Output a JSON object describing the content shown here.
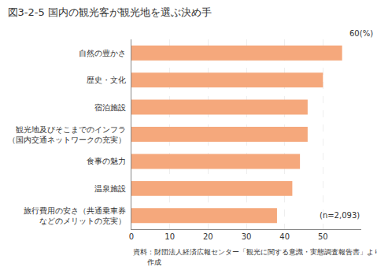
{
  "chart_data": {
    "type": "bar",
    "orientation": "horizontal",
    "title": "図3-2-5 国内の観光客が観光地を選ぶ決め手",
    "xlabel": "60(%)",
    "categories": [
      "旅行費用の安さ（共通乗車券\nなどのメリットの充実）",
      "温泉施設",
      "食事の魅力",
      "観光地及びそこまでのインフラ\n（国内交通ネットワークの充実）",
      "宿泊施設",
      "歴史・文化",
      "自然の豊かさ"
    ],
    "values": [
      38,
      42,
      44,
      46,
      46,
      50,
      55
    ],
    "color": "#F5A87C",
    "xlim": [
      0,
      60
    ],
    "xticks": [
      0,
      10,
      20,
      30,
      40,
      50
    ],
    "grid": true,
    "annotations": [
      "(n=2,093)",
      "資料：財団法人経済広報センター「観光に関する意識・実態調査報告書」より",
      "　　作成"
    ]
  }
}
